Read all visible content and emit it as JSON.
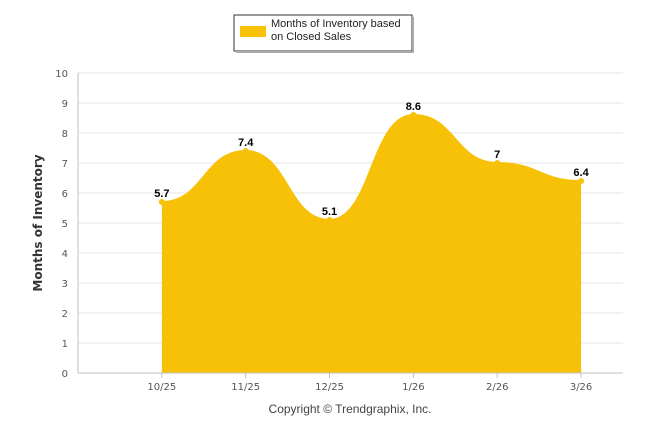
{
  "chart_data": {
    "type": "area",
    "categories": [
      "10/25",
      "11/25",
      "12/25",
      "1/26",
      "2/26",
      "3/26"
    ],
    "series": [
      {
        "name": "Months of Inventory based on Closed Sales",
        "values": [
          5.7,
          7.4,
          5.1,
          8.6,
          7,
          6.4
        ],
        "data_labels": [
          "5.7",
          "7.4",
          "5.1",
          "8.6",
          "7",
          "6.4"
        ],
        "color": "#F7C108"
      }
    ],
    "legend_lines": [
      "Months of Inventory based",
      "on Closed Sales"
    ],
    "legend_position": "top-center",
    "ylabel": "Months of Inventory",
    "xlabel": "",
    "ylim": [
      0,
      10
    ],
    "yticks": [
      "0",
      "1",
      "2",
      "3",
      "4",
      "5",
      "6",
      "7",
      "8",
      "9",
      "10"
    ],
    "grid": "horizontal",
    "footer": "Copyright © Trendgraphix, Inc."
  }
}
